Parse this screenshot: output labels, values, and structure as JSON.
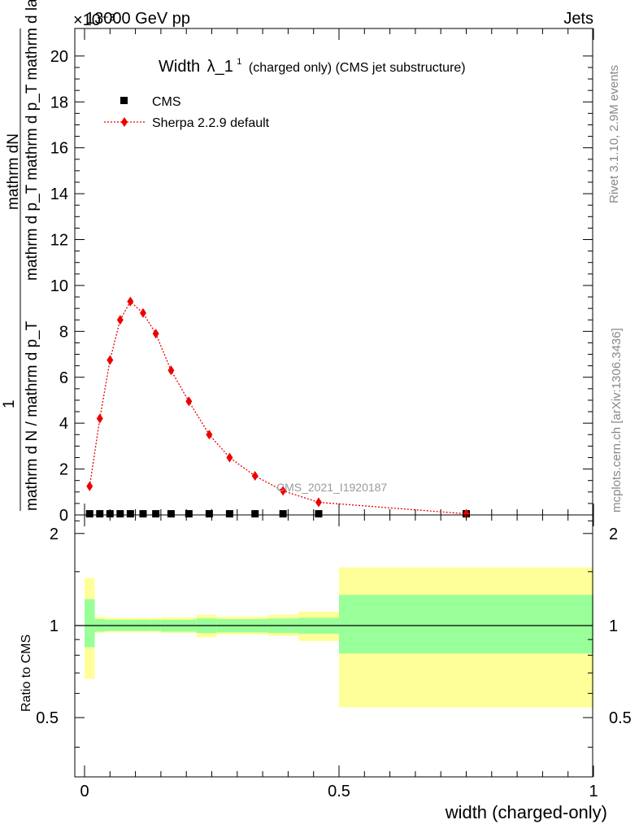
{
  "header": {
    "left": "13000 GeV pp",
    "right": "Jets",
    "exponent": "×10⁻³"
  },
  "side": {
    "rivet": "Rivet 3.1.10,  2.9M events",
    "mcplots": "mcplots.cern.ch [arXiv:1306.3436]"
  },
  "watermark": "CMS_2021_I1920187",
  "chart_data": [
    {
      "type": "line",
      "title": "Width λ_1¹ (charged only) (CMS jet substructure)",
      "title_main": "Width",
      "title_lambda": "λ_1",
      "title_sup": "1",
      "title_rest": "(charged only) (CMS jet substructure)",
      "ylabel_top": "mathrm dN",
      "ylabel_mid": "mathrm d p_T mathrm d p_T mathrm d lambda",
      "ylabel_num": "1",
      "ylabel_den": "mathrm d N / mathrm d p_T",
      "xlim": [
        0,
        1
      ],
      "ylim": [
        0,
        21.2
      ],
      "y_scale_note": "×10⁻³",
      "yticks": [
        0,
        2,
        4,
        6,
        8,
        10,
        12,
        14,
        16,
        18,
        20
      ],
      "legend": [
        "CMS",
        "Sherpa 2.2.9 default"
      ],
      "legend_position": "top-left",
      "series": [
        {
          "name": "CMS",
          "marker": "square",
          "color": "#000000",
          "x": [
            0.01,
            0.03,
            0.05,
            0.07,
            0.09,
            0.115,
            0.14,
            0.17,
            0.205,
            0.245,
            0.285,
            0.335,
            0.39,
            0.46,
            0.75
          ],
          "values": [
            0.05,
            0.05,
            0.05,
            0.05,
            0.05,
            0.05,
            0.05,
            0.05,
            0.05,
            0.05,
            0.05,
            0.05,
            0.05,
            0.05,
            0.05
          ]
        },
        {
          "name": "Sherpa 2.2.9 default",
          "marker": "diamond",
          "color": "#ee0000",
          "x": [
            0.01,
            0.03,
            0.05,
            0.07,
            0.09,
            0.115,
            0.14,
            0.17,
            0.205,
            0.245,
            0.285,
            0.335,
            0.39,
            0.46,
            0.75
          ],
          "values": [
            1.25,
            4.2,
            6.75,
            8.5,
            9.3,
            8.8,
            7.9,
            6.3,
            4.95,
            3.5,
            2.5,
            1.7,
            1.05,
            0.55,
            0.05
          ]
        }
      ]
    },
    {
      "type": "area",
      "ylabel": "Ratio to CMS",
      "xlabel": "width (charged-only)",
      "xlim": [
        0,
        1
      ],
      "ylim": [
        0.32,
        2.3
      ],
      "yticks": [
        0.5,
        1,
        2
      ],
      "xticks": [
        0,
        0.5,
        1
      ],
      "band_colors": {
        "inner": "#99ff99",
        "outer": "#ffff99"
      },
      "bins": [
        {
          "lo": 0.0,
          "hi": 0.02,
          "in": [
            0.85,
            1.22
          ],
          "out": [
            0.67,
            1.43
          ]
        },
        {
          "lo": 0.02,
          "hi": 0.04,
          "in": [
            0.955,
            1.05
          ],
          "out": [
            0.945,
            1.07
          ]
        },
        {
          "lo": 0.04,
          "hi": 0.06,
          "in": [
            0.96,
            1.045
          ],
          "out": [
            0.95,
            1.06
          ]
        },
        {
          "lo": 0.06,
          "hi": 0.08,
          "in": [
            0.96,
            1.045
          ],
          "out": [
            0.95,
            1.06
          ]
        },
        {
          "lo": 0.08,
          "hi": 0.1,
          "in": [
            0.96,
            1.045
          ],
          "out": [
            0.95,
            1.06
          ]
        },
        {
          "lo": 0.1,
          "hi": 0.13,
          "in": [
            0.96,
            1.045
          ],
          "out": [
            0.95,
            1.06
          ]
        },
        {
          "lo": 0.13,
          "hi": 0.15,
          "in": [
            0.96,
            1.045
          ],
          "out": [
            0.95,
            1.06
          ]
        },
        {
          "lo": 0.15,
          "hi": 0.19,
          "in": [
            0.955,
            1.045
          ],
          "out": [
            0.945,
            1.065
          ]
        },
        {
          "lo": 0.19,
          "hi": 0.22,
          "in": [
            0.955,
            1.045
          ],
          "out": [
            0.945,
            1.065
          ]
        },
        {
          "lo": 0.22,
          "hi": 0.26,
          "in": [
            0.945,
            1.055
          ],
          "out": [
            0.915,
            1.085
          ]
        },
        {
          "lo": 0.26,
          "hi": 0.31,
          "in": [
            0.95,
            1.05
          ],
          "out": [
            0.935,
            1.07
          ]
        },
        {
          "lo": 0.31,
          "hi": 0.36,
          "in": [
            0.95,
            1.05
          ],
          "out": [
            0.935,
            1.07
          ]
        },
        {
          "lo": 0.36,
          "hi": 0.42,
          "in": [
            0.945,
            1.055
          ],
          "out": [
            0.925,
            1.085
          ]
        },
        {
          "lo": 0.42,
          "hi": 0.5,
          "in": [
            0.94,
            1.06
          ],
          "out": [
            0.89,
            1.11
          ]
        },
        {
          "lo": 0.5,
          "hi": 1.0,
          "in": [
            0.81,
            1.26
          ],
          "out": [
            0.54,
            1.55
          ]
        }
      ]
    }
  ]
}
